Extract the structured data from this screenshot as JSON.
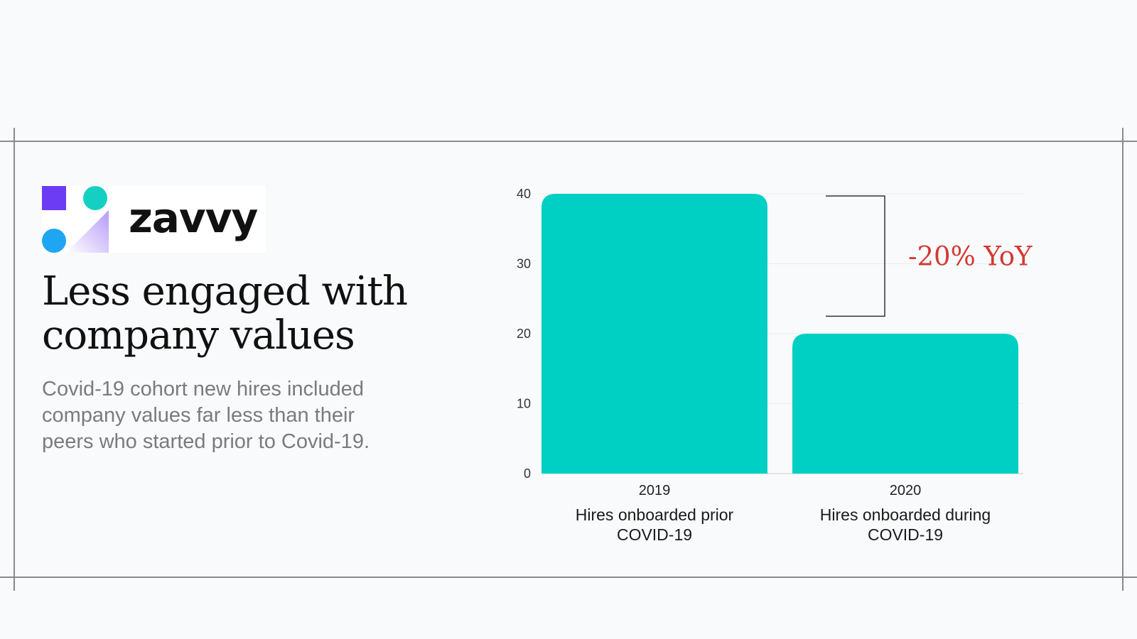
{
  "brand": {
    "name": "zavvy"
  },
  "headline": {
    "line1": "Less engaged with",
    "line2": "company values"
  },
  "subtitle": {
    "line1": "Covid-19 cohort new hires included",
    "line2": "company values far less than their",
    "line3": "peers who started prior to Covid-19."
  },
  "colors": {
    "bar": "#00cfc4",
    "annotation": "#d23a33",
    "logo_purple": "#6c3cf5",
    "logo_teal": "#14d0c2",
    "logo_blue": "#1fa6f3"
  },
  "chart_data": {
    "type": "bar",
    "categories": [
      {
        "year": "2019",
        "label": [
          "Hires onboarded prior",
          "COVID-19"
        ]
      },
      {
        "year": "2020",
        "label": [
          "Hires onboarded during",
          "COVID-19"
        ]
      }
    ],
    "values": [
      40,
      20
    ],
    "ylim": [
      0,
      40
    ],
    "yticks": [
      0,
      10,
      20,
      30,
      40
    ],
    "grid": true,
    "annotation": {
      "text": "-20% YoY",
      "from": 40,
      "to": 22.5
    }
  }
}
